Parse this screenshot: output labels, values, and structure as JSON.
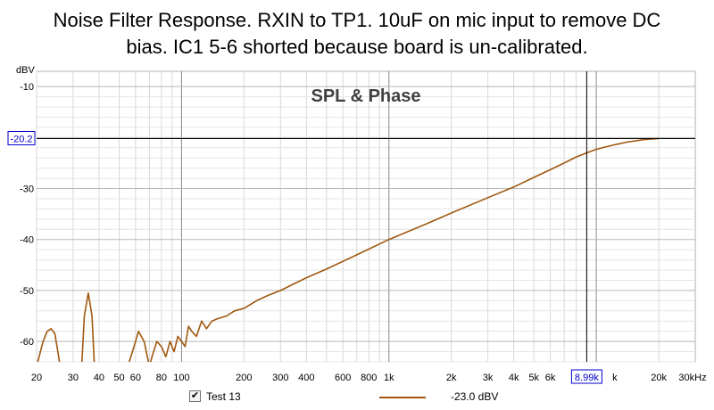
{
  "title_lines": [
    "Noise Filter Response. RXIN to TP1. 10uF on mic input to remove DC",
    "bias. IC1 5-6 shorted because board is un-calibrated."
  ],
  "chart_data": {
    "type": "line",
    "title": "SPL & Phase",
    "ylabel": "dBV",
    "xlabel": "",
    "xscale": "log",
    "xlim": [
      20,
      30000
    ],
    "ylim": [
      -64,
      -7
    ],
    "grid": true,
    "x_ticks": [
      {
        "value": 20,
        "label": "20"
      },
      {
        "value": 30,
        "label": "30"
      },
      {
        "value": 40,
        "label": "40"
      },
      {
        "value": 50,
        "label": "50"
      },
      {
        "value": 60,
        "label": "60"
      },
      {
        "value": 80,
        "label": "80"
      },
      {
        "value": 100,
        "label": "100"
      },
      {
        "value": 200,
        "label": "200"
      },
      {
        "value": 300,
        "label": "300"
      },
      {
        "value": 400,
        "label": "400"
      },
      {
        "value": 600,
        "label": "600"
      },
      {
        "value": 800,
        "label": "800"
      },
      {
        "value": 1000,
        "label": "1k"
      },
      {
        "value": 2000,
        "label": "2k"
      },
      {
        "value": 3000,
        "label": "3k"
      },
      {
        "value": 4000,
        "label": "4k"
      },
      {
        "value": 5000,
        "label": "5k"
      },
      {
        "value": 6000,
        "label": "6k"
      },
      {
        "value": 10000,
        "label": "k"
      },
      {
        "value": 20000,
        "label": "20k"
      },
      {
        "value": 30000,
        "label": "30kHz"
      }
    ],
    "y_ticks": [
      {
        "value": -10,
        "label": "-10"
      },
      {
        "value": -30,
        "label": "-30"
      },
      {
        "value": -40,
        "label": "-40"
      },
      {
        "value": -50,
        "label": "-50"
      },
      {
        "value": -60,
        "label": "-60"
      }
    ],
    "cursor": {
      "x": 8990,
      "x_label": "8.99k",
      "y": -20.2,
      "y_label": "-20.2"
    },
    "series": [
      {
        "name": "Test 13",
        "value_label": "-23.0 dBV",
        "color": "#a0580f",
        "points": [
          [
            20,
            -66
          ],
          [
            21.5,
            -60
          ],
          [
            22.5,
            -58
          ],
          [
            23.5,
            -57.5
          ],
          [
            24.5,
            -58.5
          ],
          [
            26,
            -66
          ],
          [
            33,
            -66
          ],
          [
            34,
            -55
          ],
          [
            35.5,
            -50.5
          ],
          [
            37,
            -55
          ],
          [
            38,
            -66
          ],
          [
            55,
            -66
          ],
          [
            58,
            -62
          ],
          [
            62,
            -58
          ],
          [
            66,
            -60
          ],
          [
            70,
            -66
          ],
          [
            72,
            -63
          ],
          [
            76,
            -60
          ],
          [
            80,
            -61
          ],
          [
            84,
            -63
          ],
          [
            88,
            -60
          ],
          [
            92,
            -62
          ],
          [
            96,
            -59
          ],
          [
            100,
            -60
          ],
          [
            104,
            -61
          ],
          [
            108,
            -57
          ],
          [
            112,
            -58
          ],
          [
            118,
            -59
          ],
          [
            125,
            -56
          ],
          [
            132,
            -57.5
          ],
          [
            140,
            -56
          ],
          [
            150,
            -55.5
          ],
          [
            165,
            -55
          ],
          [
            180,
            -54
          ],
          [
            200,
            -53.5
          ],
          [
            230,
            -52
          ],
          [
            260,
            -51
          ],
          [
            300,
            -50
          ],
          [
            400,
            -47.5
          ],
          [
            500,
            -45.8
          ],
          [
            700,
            -43
          ],
          [
            1000,
            -40
          ],
          [
            1500,
            -37
          ],
          [
            2000,
            -34.8
          ],
          [
            3000,
            -31.8
          ],
          [
            4000,
            -29.7
          ],
          [
            5000,
            -27.8
          ],
          [
            6000,
            -26.3
          ],
          [
            7000,
            -25
          ],
          [
            8000,
            -23.8
          ],
          [
            8990,
            -23.0
          ],
          [
            10000,
            -22.3
          ],
          [
            12000,
            -21.5
          ],
          [
            14000,
            -20.9
          ],
          [
            17000,
            -20.4
          ],
          [
            20000,
            -20.2
          ]
        ]
      }
    ]
  }
}
